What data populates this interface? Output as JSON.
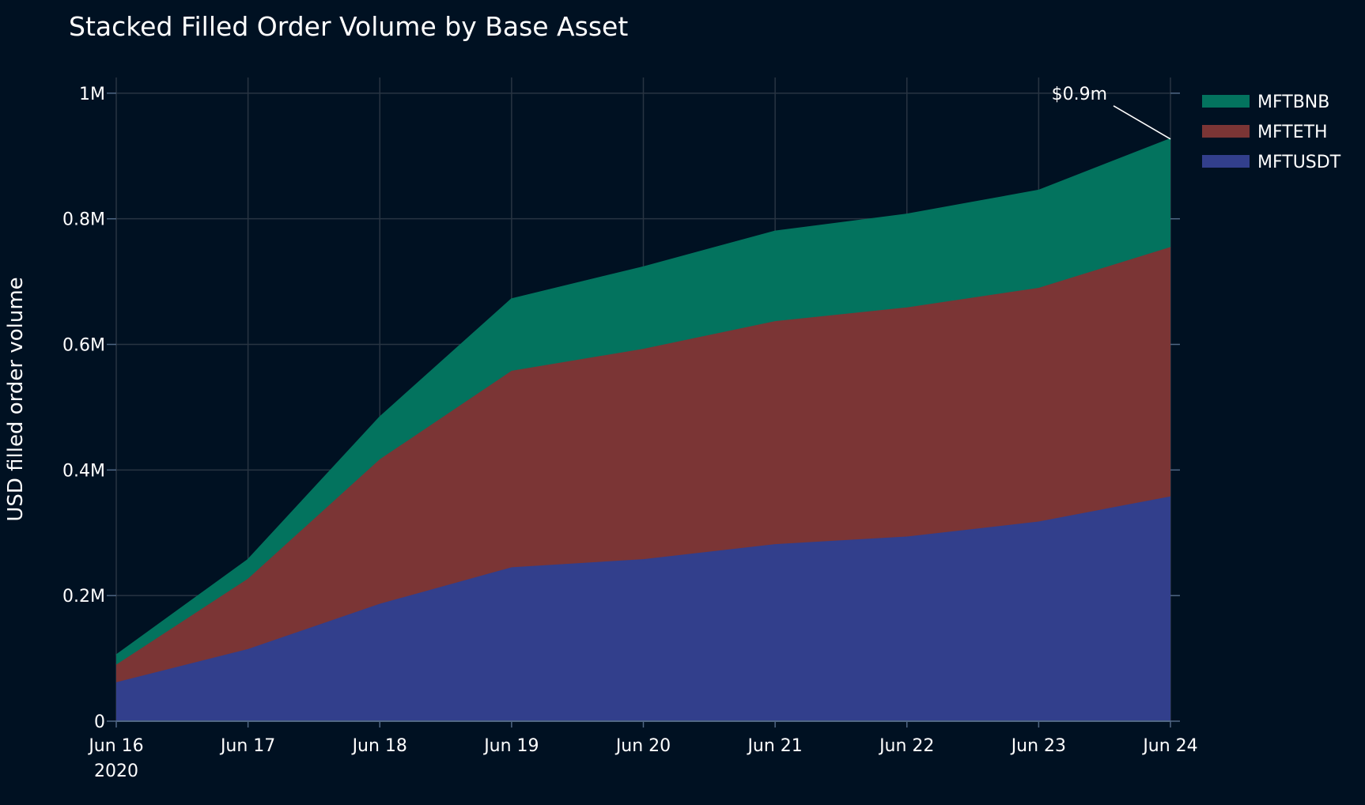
{
  "chart_data": {
    "type": "area",
    "stacked": true,
    "title": "Stacked Filled Order Volume by Base Asset",
    "ylabel": "USD filled order volume",
    "xlabel": "",
    "x": [
      "2020-06-16",
      "2020-06-17",
      "2020-06-18",
      "2020-06-19",
      "2020-06-20",
      "2020-06-21",
      "2020-06-22",
      "2020-06-23",
      "2020-06-24"
    ],
    "x_tick_labels": [
      "Jun 16",
      "Jun 17",
      "Jun 18",
      "Jun 19",
      "Jun 20",
      "Jun 21",
      "Jun 22",
      "Jun 23",
      "Jun 24"
    ],
    "x_tick_sublabel": "2020",
    "ylim": [
      0,
      1025000
    ],
    "y_ticks": [
      0,
      200000,
      400000,
      600000,
      800000,
      1000000
    ],
    "y_tick_labels": [
      "0",
      "0.2M",
      "0.4M",
      "0.6M",
      "0.8M",
      "1M"
    ],
    "grid": true,
    "legend_position": "top-right",
    "series": [
      {
        "name": "MFTUSDT",
        "color": "#323F8C",
        "values": [
          62000,
          115000,
          187000,
          245000,
          258000,
          282000,
          294000,
          318000,
          358000
        ]
      },
      {
        "name": "MFTETH",
        "color": "#7B3535",
        "values": [
          28000,
          112000,
          230000,
          313000,
          335000,
          355000,
          365000,
          372000,
          397000
        ]
      },
      {
        "name": "MFTBNB",
        "color": "#03735E",
        "values": [
          15000,
          30000,
          67000,
          114000,
          130000,
          143000,
          148000,
          155000,
          172000
        ]
      }
    ],
    "legend_order": [
      "MFTBNB",
      "MFTETH",
      "MFTUSDT"
    ],
    "annotations": [
      {
        "text": "$0.9m",
        "x": "2020-06-24",
        "y": 927000
      }
    ]
  }
}
